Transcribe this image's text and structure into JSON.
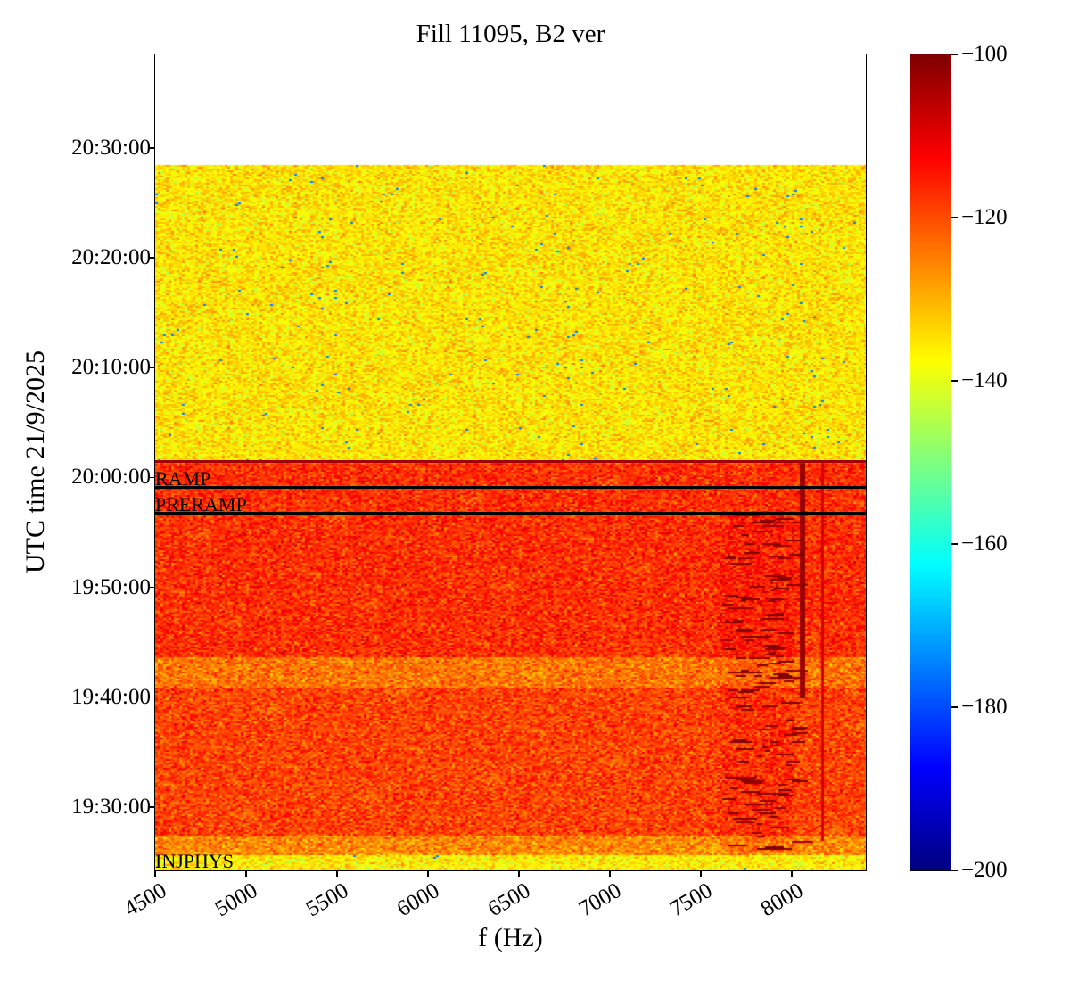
{
  "chart_data": {
    "type": "heatmap",
    "title": "Fill 11095, B2 ver",
    "xlabel": "f (Hz)",
    "ylabel": "UTC time 21/9/2025",
    "xlim": [
      4500,
      8406
    ],
    "ylim": [
      "19:24:13",
      "20:38:32"
    ],
    "x_ticks": [
      "4500",
      "5000",
      "5500",
      "6000",
      "6500",
      "7000",
      "7500",
      "8000"
    ],
    "y_ticks": [
      "19:30:00",
      "19:40:00",
      "19:50:00",
      "20:00:00",
      "20:10:00",
      "20:20:00",
      "20:30:00"
    ],
    "data_end_time": "20:28:37",
    "colormap": "jet",
    "colorbar": {
      "range": [
        -200,
        -100
      ],
      "ticks": [
        "−100",
        "−120",
        "−140",
        "−160",
        "−180",
        "−200"
      ]
    },
    "bands": [
      {
        "from": "19:24:13",
        "to": "19:25:40",
        "mean_db": -136
      },
      {
        "from": "19:25:40",
        "to": "19:27:30",
        "mean_db": -126
      },
      {
        "from": "19:27:30",
        "to": "19:41:00",
        "mean_db": -119
      },
      {
        "from": "19:41:00",
        "to": "19:43:40",
        "mean_db": -124
      },
      {
        "from": "19:43:40",
        "to": "20:01:28",
        "mean_db": -117
      },
      {
        "from": "20:01:28",
        "to": "20:28:37",
        "mean_db": -135
      }
    ],
    "features": [
      {
        "kind": "line",
        "f": 8050,
        "from": "19:40:00",
        "to": "20:01:28",
        "db": -104
      },
      {
        "kind": "line",
        "f": 8160,
        "from": "19:27:00",
        "to": "20:01:28",
        "db": -110
      },
      {
        "kind": "bursts",
        "f_range": [
          7600,
          8000
        ],
        "from": "19:26:00",
        "to": "19:57:00",
        "db": -103
      }
    ],
    "annotations": [
      {
        "label": "RAMP",
        "time": "19:59:06"
      },
      {
        "label": "PRERAMP",
        "time": "19:56:44"
      },
      {
        "label": "INJPHYS",
        "time": "19:24:15"
      }
    ],
    "boundary_line": {
      "time": "20:01:28",
      "color": "#a00000"
    },
    "grid": false
  }
}
